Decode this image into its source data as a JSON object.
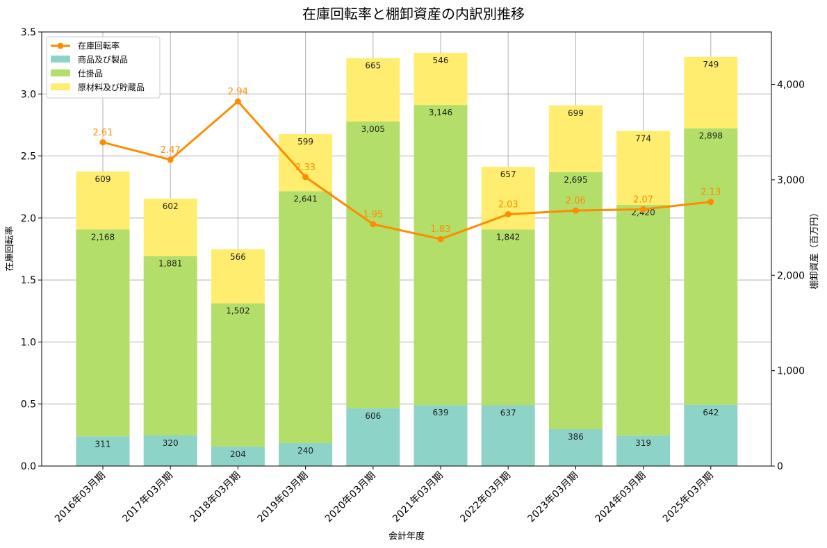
{
  "chart_data": {
    "type": "bar",
    "title": "在庫回転率と棚卸資産の内訳別推移",
    "xlabel": "会計年度",
    "ylabel": "在庫回転率",
    "y2label": "棚卸資産（百万円）",
    "categories": [
      "2016年03月期",
      "2017年03月期",
      "2018年03月期",
      "2019年03月期",
      "2020年03月期",
      "2021年03月期",
      "2022年03月期",
      "2023年03月期",
      "2024年03月期",
      "2025年03月期"
    ],
    "stacked": true,
    "series": [
      {
        "name": "商品及び製品",
        "axis": "right",
        "color": "#8dd3c7",
        "values": [
          311,
          320,
          204,
          240,
          606,
          639,
          637,
          386,
          319,
          642
        ],
        "labels": [
          "311",
          "320",
          "204",
          "240",
          "606",
          "639",
          "637",
          "386",
          "319",
          "642"
        ]
      },
      {
        "name": "仕掛品",
        "axis": "right",
        "color": "#b3de69",
        "values": [
          2168,
          1881,
          1502,
          2641,
          3005,
          3146,
          1842,
          2695,
          2420,
          2898
        ],
        "labels": [
          "2,168",
          "1,881",
          "1,502",
          "2,641",
          "3,005",
          "3,146",
          "1,842",
          "2,695",
          "2,420",
          "2,898"
        ]
      },
      {
        "name": "原材料及び貯蔵品",
        "axis": "right",
        "color": "#ffed6f",
        "values": [
          609,
          602,
          566,
          599,
          665,
          546,
          657,
          699,
          774,
          749
        ],
        "labels": [
          "609",
          "602",
          "566",
          "599",
          "665",
          "546",
          "657",
          "699",
          "774",
          "749"
        ]
      }
    ],
    "line": {
      "name": "在庫回転率",
      "axis": "left",
      "color": "#ff8c00",
      "values": [
        2.61,
        2.47,
        2.94,
        2.33,
        1.95,
        1.83,
        2.03,
        2.06,
        2.07,
        2.13
      ],
      "labels": [
        "2.61",
        "2.47",
        "2.94",
        "2.33",
        "1.95",
        "1.83",
        "2.03",
        "2.06",
        "2.07",
        "2.13"
      ]
    },
    "ylim": [
      0,
      3.5
    ],
    "yticks": [
      "0.0",
      "0.5",
      "1.0",
      "1.5",
      "2.0",
      "2.5",
      "3.0",
      "3.5"
    ],
    "yticks_values": [
      0,
      0.5,
      1.0,
      1.5,
      2.0,
      2.5,
      3.0,
      3.5
    ],
    "y2lim": [
      0,
      4550
    ],
    "y2ticks": [
      "0",
      "1,000",
      "2,000",
      "3,000",
      "4,000"
    ],
    "y2ticks_values": [
      0,
      1000,
      2000,
      3000,
      4000
    ],
    "grid": true,
    "legend": "top-left"
  }
}
